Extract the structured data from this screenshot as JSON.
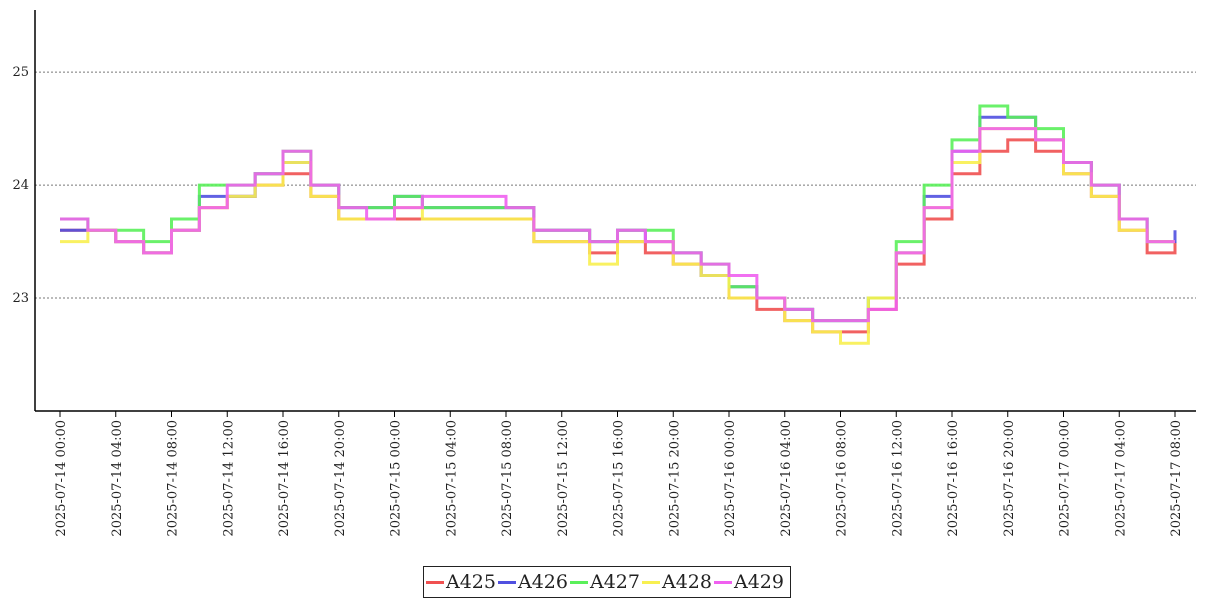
{
  "chart_data": {
    "type": "line",
    "line_style": "step",
    "title": "",
    "xlabel": "",
    "ylabel": "",
    "ylim": [
      22.0,
      25.55
    ],
    "y_ticks": [
      23,
      24,
      25
    ],
    "y_tick_labels": [
      "23",
      "24",
      "25"
    ],
    "grid": "horizontal dotted at y ticks",
    "legend_position": "bottom-center",
    "x_tick_labels": [
      "2025-07-14 00:00",
      "2025-07-14 04:00",
      "2025-07-14 08:00",
      "2025-07-14 12:00",
      "2025-07-14 16:00",
      "2025-07-14 20:00",
      "2025-07-15 00:00",
      "2025-07-15 04:00",
      "2025-07-15 08:00",
      "2025-07-15 12:00",
      "2025-07-15 16:00",
      "2025-07-15 20:00",
      "2025-07-16 00:00",
      "2025-07-16 04:00",
      "2025-07-16 08:00",
      "2025-07-16 12:00",
      "2025-07-16 16:00",
      "2025-07-16 20:00",
      "2025-07-17 00:00",
      "2025-07-17 04:00",
      "2025-07-17 08:00"
    ],
    "x": [
      "2025-07-14 00:00",
      "2025-07-14 02:00",
      "2025-07-14 04:00",
      "2025-07-14 06:00",
      "2025-07-14 08:00",
      "2025-07-14 10:00",
      "2025-07-14 12:00",
      "2025-07-14 14:00",
      "2025-07-14 16:00",
      "2025-07-14 18:00",
      "2025-07-14 20:00",
      "2025-07-14 22:00",
      "2025-07-15 00:00",
      "2025-07-15 02:00",
      "2025-07-15 04:00",
      "2025-07-15 06:00",
      "2025-07-15 08:00",
      "2025-07-15 10:00",
      "2025-07-15 12:00",
      "2025-07-15 14:00",
      "2025-07-15 16:00",
      "2025-07-15 18:00",
      "2025-07-15 20:00",
      "2025-07-15 22:00",
      "2025-07-16 00:00",
      "2025-07-16 02:00",
      "2025-07-16 04:00",
      "2025-07-16 06:00",
      "2025-07-16 08:00",
      "2025-07-16 10:00",
      "2025-07-16 12:00",
      "2025-07-16 14:00",
      "2025-07-16 16:00",
      "2025-07-16 18:00",
      "2025-07-16 20:00",
      "2025-07-16 22:00",
      "2025-07-17 00:00",
      "2025-07-17 02:00",
      "2025-07-17 04:00",
      "2025-07-17 06:00",
      "2025-07-17 08:00"
    ],
    "series": [
      {
        "name": "A425",
        "color": "#f05050",
        "values": [
          23.6,
          23.6,
          23.5,
          23.4,
          23.6,
          23.8,
          23.9,
          24.0,
          24.1,
          23.9,
          23.7,
          23.7,
          23.7,
          23.7,
          23.7,
          23.7,
          23.7,
          23.5,
          23.5,
          23.4,
          23.5,
          23.4,
          23.3,
          23.2,
          23.0,
          22.9,
          22.8,
          22.7,
          22.7,
          22.9,
          23.3,
          23.7,
          24.1,
          24.3,
          24.4,
          24.3,
          24.1,
          23.9,
          23.6,
          23.4,
          23.5
        ]
      },
      {
        "name": "A426",
        "color": "#5050e0",
        "values": [
          23.6,
          23.6,
          23.5,
          23.4,
          23.6,
          23.9,
          23.9,
          24.1,
          24.2,
          24.0,
          23.8,
          23.8,
          23.9,
          23.8,
          23.8,
          23.8,
          23.8,
          23.6,
          23.6,
          23.5,
          23.6,
          23.5,
          23.4,
          23.2,
          23.1,
          23.0,
          22.9,
          22.8,
          22.8,
          23.0,
          23.4,
          23.9,
          24.3,
          24.6,
          24.6,
          24.4,
          24.2,
          24.0,
          23.7,
          23.5,
          23.6
        ]
      },
      {
        "name": "A427",
        "color": "#5af05a",
        "values": [
          23.7,
          23.6,
          23.6,
          23.5,
          23.7,
          24.0,
          24.0,
          24.1,
          24.3,
          24.0,
          23.8,
          23.8,
          23.9,
          23.8,
          23.8,
          23.8,
          23.8,
          23.6,
          23.6,
          23.5,
          23.6,
          23.6,
          23.4,
          23.3,
          23.1,
          23.0,
          22.9,
          22.8,
          22.8,
          23.0,
          23.5,
          24.0,
          24.4,
          24.7,
          24.6,
          24.5,
          24.2,
          24.0,
          23.7,
          23.5,
          23.5
        ]
      },
      {
        "name": "A428",
        "color": "#f8f050",
        "values": [
          23.5,
          23.6,
          23.5,
          23.4,
          23.6,
          23.8,
          23.9,
          24.0,
          24.2,
          23.9,
          23.7,
          23.7,
          23.8,
          23.7,
          23.7,
          23.7,
          23.7,
          23.5,
          23.5,
          23.3,
          23.5,
          23.5,
          23.3,
          23.2,
          23.0,
          23.0,
          22.8,
          22.7,
          22.6,
          23.0,
          23.4,
          23.8,
          24.2,
          24.5,
          24.5,
          24.4,
          24.1,
          23.9,
          23.6,
          23.5,
          23.5
        ]
      },
      {
        "name": "A429",
        "color": "#f060f0",
        "values": [
          23.7,
          23.6,
          23.5,
          23.4,
          23.6,
          23.8,
          24.0,
          24.1,
          24.3,
          24.0,
          23.8,
          23.7,
          23.8,
          23.9,
          23.9,
          23.9,
          23.8,
          23.6,
          23.6,
          23.5,
          23.6,
          23.5,
          23.4,
          23.3,
          23.2,
          23.0,
          22.9,
          22.8,
          22.8,
          22.9,
          23.4,
          23.8,
          24.3,
          24.5,
          24.5,
          24.4,
          24.2,
          24.0,
          23.7,
          23.5,
          23.5
        ]
      }
    ]
  }
}
